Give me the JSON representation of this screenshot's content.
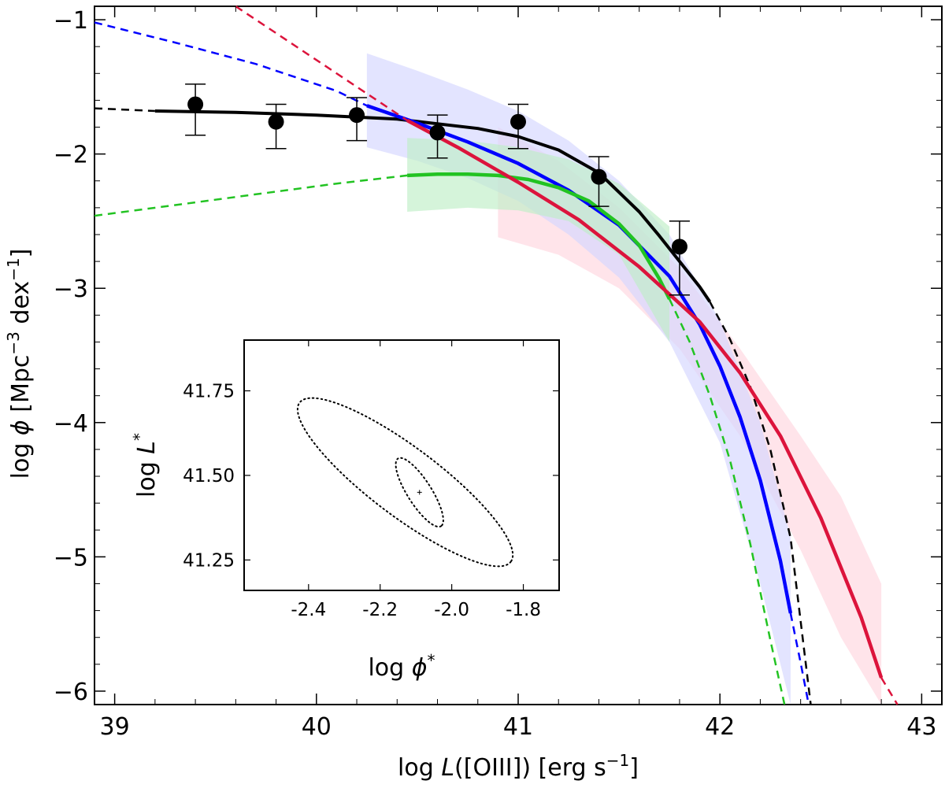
{
  "chart_data": [
    {
      "type": "line",
      "id": "main",
      "xlabel": "log  L([OIII]) [erg s−1]",
      "xlabel_parts": {
        "pre": "log ",
        "var": "L",
        "mid": "([OIII]) [erg s",
        "sup": "−1",
        "post": "]"
      },
      "ylabel": "log  ϕ [Mpc−3 dex−1]",
      "ylabel_parts": {
        "pre": "log  ",
        "var": "ϕ",
        "a": " [Mpc",
        "sup1": "−3",
        "b": " dex",
        "sup2": "−1",
        "c": "]"
      },
      "xlim": [
        38.9,
        43.1
      ],
      "ylim": [
        -6.1,
        -0.9
      ],
      "xticks": [
        39,
        40,
        41,
        42,
        43
      ],
      "xtick_labels": [
        "39",
        "40",
        "41",
        "42",
        "43"
      ],
      "yticks": [
        -1,
        -2,
        -3,
        -4,
        -5,
        -6
      ],
      "ytick_labels": [
        "−1",
        "−2",
        "−3",
        "−4",
        "−5",
        "−6"
      ],
      "points": {
        "x": [
          39.4,
          39.8,
          40.2,
          40.6,
          41.0,
          41.4,
          41.8
        ],
        "y": [
          -1.63,
          -1.76,
          -1.71,
          -1.84,
          -1.76,
          -2.17,
          -2.69
        ],
        "yerr_low": [
          0.23,
          0.2,
          0.19,
          0.19,
          0.2,
          0.22,
          0.36
        ],
        "yerr_high": [
          0.15,
          0.13,
          0.13,
          0.13,
          0.13,
          0.15,
          0.19
        ],
        "color": "#000000"
      },
      "series": [
        {
          "name": "black fit",
          "color": "#000000",
          "solid": {
            "x": [
              39.2,
              39.6,
              40.0,
              40.4,
              40.8,
              41.0,
              41.2,
              41.4,
              41.6,
              41.7,
              41.8,
              41.9,
              41.95
            ],
            "y": [
              -1.68,
              -1.69,
              -1.71,
              -1.74,
              -1.81,
              -1.87,
              -1.97,
              -2.14,
              -2.43,
              -2.61,
              -2.8,
              -2.99,
              -3.1
            ]
          },
          "dashed": [
            {
              "x": [
                38.9,
                39.2
              ],
              "y": [
                -1.66,
                -1.68
              ]
            },
            {
              "x": [
                41.95,
                42.05,
                42.15,
                42.25,
                42.35,
                42.45
              ],
              "y": [
                -3.1,
                -3.38,
                -3.73,
                -4.2,
                -4.86,
                -6.1
              ]
            }
          ]
        },
        {
          "name": "blue",
          "color": "#0000ff",
          "solid": {
            "x": [
              40.25,
              40.5,
              40.75,
              41.0,
              41.25,
              41.5,
              41.75,
              41.9,
              42.0,
              42.1,
              42.2,
              42.3,
              42.35
            ],
            "y": [
              -1.64,
              -1.77,
              -1.91,
              -2.07,
              -2.27,
              -2.53,
              -2.91,
              -3.27,
              -3.58,
              -3.96,
              -4.43,
              -5.03,
              -5.42
            ]
          },
          "dashed": [
            {
              "x": [
                38.9,
                39.3,
                39.7,
                40.1,
                40.25
              ],
              "y": [
                -1.02,
                -1.17,
                -1.33,
                -1.53,
                -1.64
              ]
            },
            {
              "x": [
                42.35,
                42.4,
                42.44
              ],
              "y": [
                -5.42,
                -5.79,
                -6.1
              ]
            }
          ],
          "band": {
            "x": [
              40.25,
              40.5,
              40.75,
              41.0,
              41.25,
              41.5,
              41.75,
              42.0,
              42.2,
              42.35
            ],
            "upper": [
              -1.25,
              -1.38,
              -1.52,
              -1.68,
              -1.9,
              -2.2,
              -2.6,
              -3.24,
              -4.0,
              -4.85
            ],
            "lower": [
              -1.95,
              -2.05,
              -2.18,
              -2.35,
              -2.6,
              -2.92,
              -3.4,
              -4.15,
              -5.2,
              -6.1
            ]
          }
        },
        {
          "name": "green",
          "color": "#22c322",
          "solid": {
            "x": [
              40.45,
              40.6,
              40.75,
              40.9,
              41.05,
              41.2,
              41.35,
              41.5,
              41.6,
              41.7,
              41.75
            ],
            "y": [
              -2.16,
              -2.15,
              -2.15,
              -2.16,
              -2.19,
              -2.25,
              -2.35,
              -2.52,
              -2.68,
              -2.93,
              -3.08
            ]
          },
          "dashed": [
            {
              "x": [
                38.9,
                39.3,
                39.7,
                40.1,
                40.45
              ],
              "y": [
                -2.46,
                -2.38,
                -2.3,
                -2.22,
                -2.16
              ]
            },
            {
              "x": [
                41.75,
                41.85,
                41.95,
                42.05,
                42.15,
                42.25,
                42.32
              ],
              "y": [
                -3.08,
                -3.4,
                -3.8,
                -4.28,
                -4.9,
                -5.62,
                -6.1
              ]
            }
          ],
          "band": {
            "x": [
              40.45,
              40.75,
              41.0,
              41.25,
              41.5,
              41.75
            ],
            "upper": [
              -1.88,
              -1.9,
              -1.95,
              -2.04,
              -2.22,
              -2.54
            ],
            "lower": [
              -2.43,
              -2.4,
              -2.42,
              -2.5,
              -2.75,
              -3.4
            ]
          }
        },
        {
          "name": "red",
          "color": "#dc143c",
          "solid": {
            "x": [
              40.45,
              40.7,
              41.0,
              41.3,
              41.6,
              41.9,
              42.1,
              42.3,
              42.5,
              42.7,
              42.8
            ],
            "y": [
              -1.75,
              -1.95,
              -2.21,
              -2.49,
              -2.84,
              -3.25,
              -3.63,
              -4.1,
              -4.71,
              -5.45,
              -5.9
            ]
          },
          "dashed": [
            {
              "x": [
                39.6,
                39.8,
                40.0,
                40.2,
                40.45
              ],
              "y": [
                -0.9,
                -1.1,
                -1.3,
                -1.5,
                -1.75
              ]
            },
            {
              "x": [
                42.8,
                42.88
              ],
              "y": [
                -5.9,
                -6.1
              ]
            }
          ],
          "band": {
            "x": [
              40.9,
              41.2,
              41.5,
              41.8,
              42.1,
              42.4,
              42.6,
              42.8
            ],
            "upper": [
              -1.8,
              -2.05,
              -2.4,
              -2.85,
              -3.45,
              -4.1,
              -4.55,
              -5.2
            ],
            "lower": [
              -2.62,
              -2.75,
              -3.0,
              -3.45,
              -4.1,
              -4.95,
              -5.6,
              -6.1
            ]
          }
        }
      ]
    },
    {
      "type": "contour",
      "id": "inset",
      "xlabel": "log ϕ*",
      "xlabel_parts": {
        "pre": "log ",
        "var": "ϕ",
        "sup": "*"
      },
      "ylabel": "log L*",
      "ylabel_parts": {
        "pre": "log ",
        "var": "L",
        "sup": "*"
      },
      "xlim": [
        -2.58,
        -1.7
      ],
      "ylim": [
        41.16,
        41.9
      ],
      "xticks": [
        -2.4,
        -2.2,
        -2.0,
        -1.8
      ],
      "xtick_labels": [
        "-2.4",
        "-2.2",
        "-2.0",
        "-1.8"
      ],
      "yticks": [
        41.75,
        41.5,
        41.25
      ],
      "ytick_labels": [
        "41.75",
        "41.50",
        "41.25"
      ],
      "best_fit": {
        "x": -2.09,
        "y": 41.45
      },
      "contours": [
        {
          "label": "inner",
          "center": [
            -2.09,
            41.45
          ],
          "points": [
            [
              -2.1,
              41.56
            ],
            [
              -2.02,
              41.46
            ],
            [
              -1.98,
              41.36
            ],
            [
              -2.09,
              41.45
            ],
            [
              -2.19,
              41.54
            ]
          ]
        },
        {
          "label": "outer",
          "center": [
            -2.13,
            41.48
          ],
          "points": [
            [
              -2.44,
              41.76
            ],
            [
              -2.1,
              41.58
            ],
            [
              -1.85,
              41.29
            ],
            [
              -1.96,
              41.3
            ],
            [
              -2.39,
              41.57
            ]
          ]
        }
      ]
    }
  ]
}
